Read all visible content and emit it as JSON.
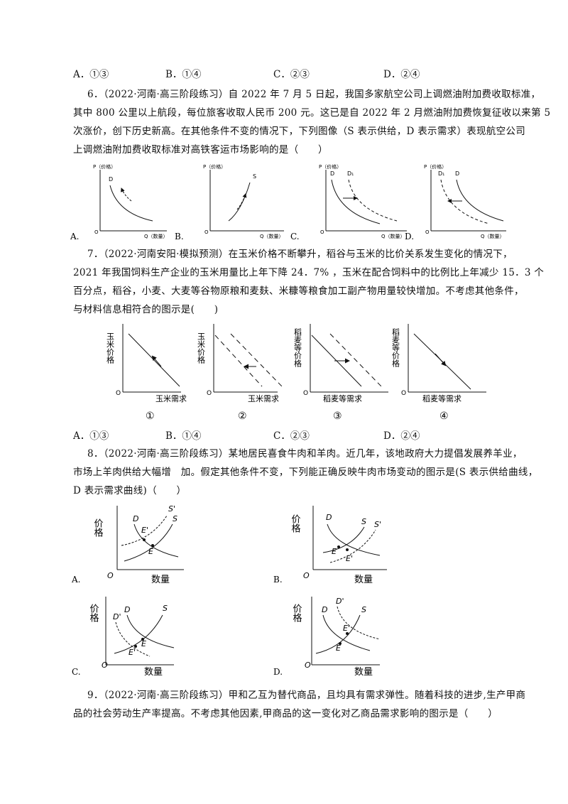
{
  "q5_options": {
    "a": "A．①③",
    "b": "B．①④",
    "c": "C．②③",
    "d": "D．②④"
  },
  "q6": {
    "lines": [
      "6．（2022·河南·高三阶段练习）自 2022 年 7 月 5 日起，我国多家航空公司上调燃油附加费收取标准，",
      "其中 800 公里以上航段，每位旅客收取人民币 200 元。这已是自 2022 年 2 月燃油附加费恢复征收以来第 5",
      "次涨价，创下历史新高。在其他条件不变的情况下，下列图像（S 表示供给，D 表示需求）表现航空公司",
      "上调燃油附加费收取标准对高铁客运市场影响的是（　　）"
    ],
    "graphs": [
      {
        "option": "A.",
        "ylabel": "P（价格）",
        "xlabel": "Q（数量）",
        "origin": "O",
        "curves": [
          "D"
        ]
      },
      {
        "option": "B.",
        "ylabel": "P（价格）",
        "xlabel": "Q（数量）",
        "origin": "O",
        "curves": [
          "S"
        ]
      },
      {
        "option": "C.",
        "ylabel": "P（价格）",
        "xlabel": "Q（数量）",
        "origin": "O",
        "curves": [
          "D",
          "D₁"
        ]
      },
      {
        "option": "D.",
        "ylabel": "P（价格）",
        "xlabel": "Q（数量）",
        "origin": "O",
        "curves": [
          "D₁",
          "D"
        ]
      }
    ]
  },
  "q7": {
    "lines": [
      "7．（2022·河南安阳·模拟预测）在玉米价格不断攀升，稻谷与玉米的比价关系发生变化的情况下，",
      "2021 年我国饲料生产企业的玉米用量比上年下降 24．7% ，玉米在配合饲料中的比例比上年减少 15．3 个",
      "百分点，稻谷，小麦、大麦等谷物原粮和麦麸、米糠等粮食加工副产物用量较快增加。不考虑其他条件，",
      "与材料信息相符合的图示是(　　)"
    ],
    "graphs": [
      {
        "ylabel": "玉米价格",
        "xlabel": "玉米需求",
        "origin": "O",
        "number": "①"
      },
      {
        "ylabel": "玉米价格",
        "xlabel": "玉米需求",
        "origin": "O",
        "number": "②"
      },
      {
        "ylabel": "稻麦等价格",
        "xlabel": "稻麦等需求",
        "origin": "O",
        "number": "③"
      },
      {
        "ylabel": "稻麦等价格",
        "xlabel": "稻麦等需求",
        "origin": "O",
        "number": "④"
      }
    ],
    "options": {
      "a": "A．①③",
      "b": "B．①④",
      "c": "C．②③",
      "d": "D．②④"
    }
  },
  "q8": {
    "lines": [
      "8．（2022·河南·高三阶段练习）某地居民喜食牛肉和羊肉。近几年，该地政府大力提倡发展养羊业，",
      "市场上羊肉供给大幅增　加。假定其他条件不变，下列能正确反映牛肉市场变动的图示是(S 表示供给曲线，",
      "D 表示需求曲线)（　　）"
    ],
    "graphs": [
      {
        "option": "A.",
        "ylabel": "价格",
        "xlabel": "数量",
        "origin": "O",
        "labels": [
          "D",
          "S'",
          "S",
          "E'",
          "E"
        ]
      },
      {
        "option": "B.",
        "ylabel": "价格",
        "xlabel": "数量",
        "origin": "O",
        "labels": [
          "D",
          "S",
          "S'",
          "E",
          "E'"
        ]
      },
      {
        "option": "C.",
        "ylabel": "价格",
        "xlabel": "数量",
        "origin": "O",
        "labels": [
          "D'",
          "D",
          "S",
          "E",
          "E'"
        ]
      },
      {
        "option": "D.",
        "ylabel": "价格",
        "xlabel": "数量",
        "origin": "O",
        "labels": [
          "D",
          "D'",
          "S",
          "E'",
          "E"
        ]
      }
    ]
  },
  "q9": {
    "lines": [
      "9．（2022·河南·高三阶段练习）甲和乙互为替代商品，且均具有需求弹性。随着科技的进步,生产甲商",
      "品的社会劳动生产率提高。不考虑其他因素,甲商品的这一变化对乙商品需求影响的图示是（　　）"
    ]
  }
}
